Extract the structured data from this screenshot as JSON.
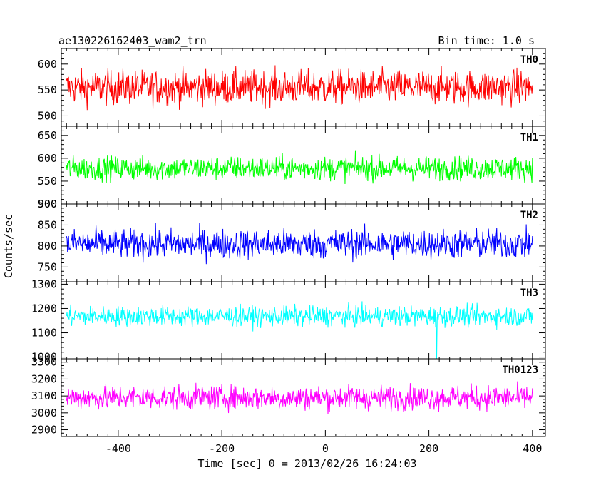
{
  "header": {
    "title": "ae130226162403_wam2_trn",
    "bin_time": "Bin time: 1.0 s"
  },
  "chart_data": {
    "type": "line",
    "title": "ae130226162403_wam2_trn",
    "subtitle": "Bin time: 1.0 s",
    "xlabel": "Time [sec] 0 = 2013/02/26 16:24:03",
    "ylabel": "Counts/sec",
    "xlim": [
      -510,
      425
    ],
    "x_range": [
      -500,
      400
    ],
    "x_ticks": [
      -400,
      -200,
      0,
      200,
      400
    ],
    "grid": false,
    "panels": [
      {
        "name": "TH0",
        "color": "#ff0000",
        "ylim": [
          480,
          630
        ],
        "y_ticks": [
          500,
          550,
          600
        ],
        "mean": 555,
        "spread": 28
      },
      {
        "name": "TH1",
        "color": "#00ff00",
        "ylim": [
          500,
          670
        ],
        "y_ticks": [
          500,
          550,
          600,
          650
        ],
        "mean": 578,
        "spread": 22
      },
      {
        "name": "TH2",
        "color": "#0000ff",
        "ylim": [
          715,
          900
        ],
        "y_ticks": [
          750,
          800,
          850,
          900
        ],
        "mean": 805,
        "spread": 30
      },
      {
        "name": "TH3",
        "color": "#00ffff",
        "ylim": [
          990,
          1310
        ],
        "y_ticks": [
          1000,
          1100,
          1200,
          1300
        ],
        "mean": 1168,
        "spread": 35
      },
      {
        "name": "TH0123",
        "color": "#ff00ff",
        "ylim": [
          2860,
          3320
        ],
        "y_ticks": [
          2900,
          3000,
          3100,
          3200,
          3300
        ],
        "mean": 3090,
        "spread": 60
      }
    ]
  }
}
